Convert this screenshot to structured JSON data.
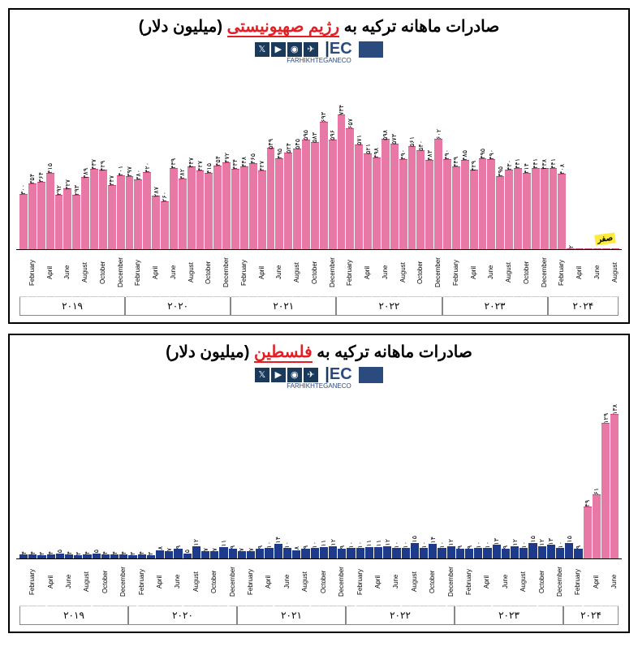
{
  "chart1": {
    "title_parts": [
      "صادرات ماهانه ترکیه به ",
      "رژیم صهیونیستی",
      " (میلیون دلار)"
    ],
    "bar_color": "#e879a6",
    "bar_border": "#c94d7a",
    "max_value": 800,
    "highlight_label": "صفر",
    "values": [
      300,
      354,
      364,
      415,
      292,
      327,
      293,
      389,
      437,
      429,
      347,
      401,
      397,
      380,
      420,
      287,
      260,
      439,
      382,
      447,
      427,
      415,
      454,
      472,
      434,
      448,
      465,
      427,
      549,
      495,
      524,
      545,
      595,
      583,
      693,
      596,
      734,
      657,
      571,
      521,
      498,
      598,
      573,
      490,
      561,
      540,
      483,
      602,
      490,
      449,
      485,
      429,
      495,
      490,
      395,
      430,
      441,
      414,
      441,
      438,
      441,
      408,
      2,
      0,
      0,
      0,
      0,
      0
    ],
    "labels": [
      "۳۰۰",
      "۳۵۴",
      "۳۶۴",
      "۴۱۵",
      "۲۹۲",
      "۳۲۷",
      "۲۹۳",
      "۳۸۹",
      "۴۳۷",
      "۴۲۹",
      "۳۴۷",
      "۴۰۱",
      "۳۹۷",
      "۳۸۰",
      "۴۲۰",
      "۲۸۷",
      "۲۶۰",
      "۴۳۹",
      "۳۸۲",
      "۴۴۷",
      "۴۲۷",
      "۴۱۵",
      "۴۵۴",
      "۴۷۲",
      "۴۳۴",
      "۴۴۸",
      "۴۶۵",
      "۴۲۷",
      "۵۴۹",
      "۴۹۵",
      "۵۲۴",
      "۵۴۵",
      "۵۹۵",
      "۵۸۳",
      "۶۹۳",
      "۵۹۶",
      "۷۳۴",
      "۶۵۷",
      "۵۷۱",
      "۵۲۱",
      "۴۹۸",
      "۵۹۸",
      "۵۷۳",
      "۴۹۰",
      "۵۶۱",
      "۵۴۰",
      "۴۸۳",
      "۶۰۲",
      "۴۹۰",
      "۴۴۹",
      "۴۸۵",
      "۴۲۹",
      "۴۹۵",
      "۴۹۰",
      "۳۹۵",
      "۴۳۰",
      "۴۴۱",
      "۴۱۴",
      "۴۴۱",
      "۴۳۸",
      "۴۴۱",
      "۴۰۸",
      "۲",
      "",
      "",
      "",
      "",
      ""
    ]
  },
  "chart2": {
    "title_parts": [
      "صادرات ماهانه ترکیه به ",
      "فلسطین",
      " (میلیون دلار)"
    ],
    "bar_color": "#1e3a8a",
    "spike_color": "#e879a6",
    "spike_border": "#c94d7a",
    "max_value": 140,
    "values": [
      4,
      4,
      3,
      4,
      5,
      4,
      3,
      4,
      5,
      4,
      4,
      4,
      3,
      4,
      3,
      8,
      7,
      9,
      5,
      12,
      7,
      7,
      11,
      9,
      7,
      7,
      9,
      10,
      14,
      10,
      8,
      9,
      10,
      11,
      12,
      9,
      10,
      10,
      11,
      11,
      12,
      10,
      10,
      15,
      10,
      14,
      10,
      12,
      9,
      9,
      10,
      10,
      13,
      9,
      12,
      10,
      15,
      12,
      13,
      10,
      15,
      9,
      49,
      61,
      129,
      138
    ],
    "labels": [
      "۴",
      "۴",
      "۳",
      "۴",
      "۵",
      "۴",
      "۳",
      "۴",
      "۵",
      "۴",
      "۴",
      "۴",
      "۳",
      "۴",
      "۳",
      "۸",
      "۷",
      "۹",
      "۵",
      "۱۲",
      "۷",
      "۷",
      "۱۱",
      "۹",
      "۷",
      "۷",
      "۹",
      "۱۰",
      "۱۴",
      "۱۰",
      "۸",
      "۹",
      "۱۰",
      "۱۱",
      "۱۲",
      "۹",
      "۱۰",
      "۱۰",
      "۱۱",
      "۱۱",
      "۱۲",
      "۱۰",
      "۱۰",
      "۱۵",
      "۱۰",
      "۱۴",
      "۱۰",
      "۱۲",
      "۹",
      "۹",
      "۱۰",
      "۱۰",
      "۱۳",
      "۹",
      "۱۲",
      "۱۰",
      "۱۵",
      "۱۲",
      "۱۳",
      "۱۰",
      "۱۵",
      "۹",
      "۴۹",
      "۶۱",
      "۱۲۹",
      "۱۳۸"
    ],
    "spike_start": 62
  },
  "months": [
    "",
    "February",
    "",
    "April",
    "",
    "June",
    "",
    "August",
    "",
    "October",
    "",
    "December"
  ],
  "years": [
    "۲۰۱۹",
    "۲۰۲۰",
    "۲۰۲۱",
    "۲۰۲۲",
    "۲۰۲۳",
    "۲۰۲۴"
  ],
  "logo": {
    "brand": "FARHIKHTEGANECO",
    "eco": "EC"
  }
}
